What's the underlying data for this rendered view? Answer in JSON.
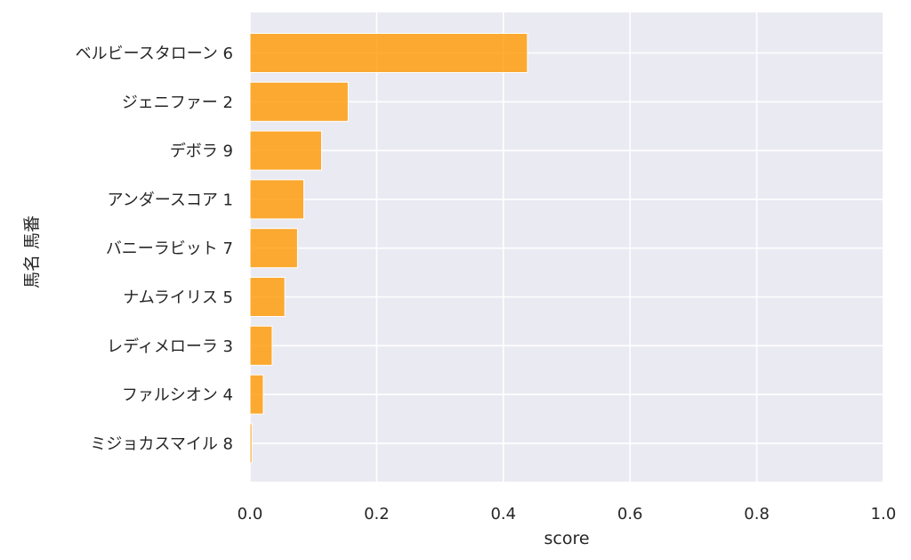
{
  "chart_data": {
    "type": "bar",
    "orientation": "horizontal",
    "xlabel": "score",
    "ylabel": "馬名 馬番",
    "xlim": [
      0,
      1.0
    ],
    "xticks": [
      "0.0",
      "0.2",
      "0.4",
      "0.6",
      "0.8",
      "1.0"
    ],
    "grid": true,
    "bar_color": "#ff9800",
    "background_color": "#eaeaf2",
    "categories": [
      "ベルビースタローン 6",
      "ジェニファー 2",
      "デボラ 9",
      "アンダースコア 1",
      "バニーラビット 7",
      "ナムライリス 5",
      "レディメローラ 3",
      "ファルシオン 4",
      "ミジョカスマイル 8"
    ],
    "values": [
      0.438,
      0.155,
      0.113,
      0.085,
      0.075,
      0.055,
      0.035,
      0.021,
      0.003
    ]
  }
}
